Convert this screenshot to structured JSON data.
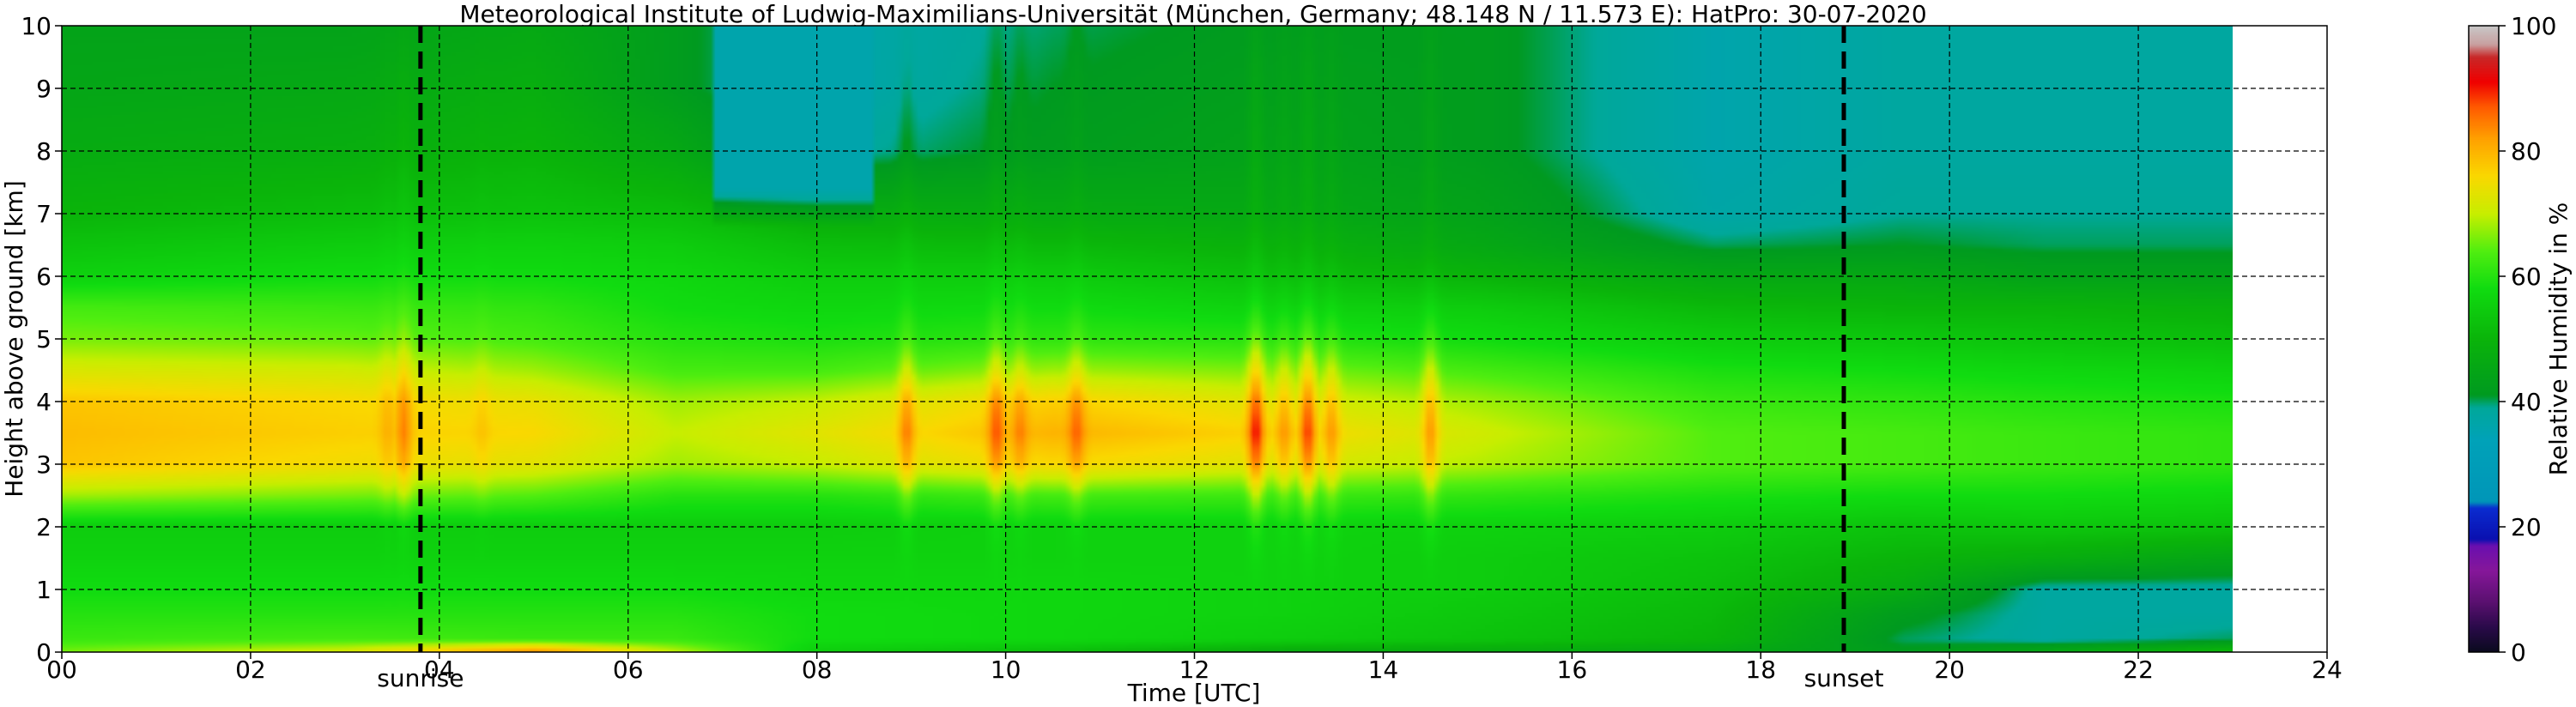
{
  "chart_data": {
    "type": "heatmap",
    "title": "Meteorological Institute of Ludwig-Maximilians-Universität (München, Germany; 48.148 N / 11.573 E):    HatPro: 30-07-2020",
    "xlabel": "Time [UTC]",
    "ylabel": "Height above ground [km]",
    "xlim": [
      0,
      24
    ],
    "ylim": [
      0,
      10
    ],
    "data_x_extent": [
      0,
      23
    ],
    "x_ticks": [
      "00",
      "02",
      "04",
      "06",
      "08",
      "10",
      "12",
      "14",
      "16",
      "18",
      "20",
      "22",
      "24"
    ],
    "y_ticks": [
      "0",
      "1",
      "2",
      "3",
      "4",
      "5",
      "6",
      "7",
      "8",
      "9",
      "10"
    ],
    "grid": true,
    "colorbar": {
      "label": "Relative Humidity in %",
      "range": [
        0,
        100
      ],
      "ticks": [
        "0",
        "20",
        "40",
        "60",
        "80",
        "100"
      ],
      "stops": [
        {
          "v": 0,
          "color": "#0a0a1e"
        },
        {
          "v": 4,
          "color": "#2a0a4a"
        },
        {
          "v": 8,
          "color": "#5a1070"
        },
        {
          "v": 13,
          "color": "#86179a"
        },
        {
          "v": 17,
          "color": "#6a0fb0"
        },
        {
          "v": 18,
          "color": "#0a10b0"
        },
        {
          "v": 23,
          "color": "#0a2cd0"
        },
        {
          "v": 24,
          "color": "#0096b8"
        },
        {
          "v": 34,
          "color": "#00a2b8"
        },
        {
          "v": 39,
          "color": "#00a89a"
        },
        {
          "v": 41,
          "color": "#009a20"
        },
        {
          "v": 50,
          "color": "#0ab40a"
        },
        {
          "v": 58,
          "color": "#10dc10"
        },
        {
          "v": 64,
          "color": "#50ee10"
        },
        {
          "v": 70,
          "color": "#c8ee00"
        },
        {
          "v": 76,
          "color": "#fad800"
        },
        {
          "v": 82,
          "color": "#ffa000"
        },
        {
          "v": 87,
          "color": "#ff5a00"
        },
        {
          "v": 91,
          "color": "#f00000"
        },
        {
          "v": 95,
          "color": "#c82828"
        },
        {
          "v": 97,
          "color": "#c8a0a0"
        },
        {
          "v": 100,
          "color": "#c8c8c8"
        }
      ]
    },
    "annotations": [
      {
        "label": "sunrise",
        "x": 3.8
      },
      {
        "label": "sunset",
        "x": 18.88
      }
    ],
    "humidity_profile_at_hours": {
      "heights_km": [
        0,
        0.2,
        0.6,
        1.0,
        1.5,
        2.0,
        2.5,
        3.0,
        3.5,
        4.0,
        4.5,
        5.0,
        5.5,
        6.0,
        6.5,
        7.0,
        8.0,
        9.0,
        10.0
      ],
      "columns": [
        {
          "t": 0,
          "rh": [
            66,
            62,
            60,
            58,
            56,
            55,
            68,
            78,
            79,
            78,
            72,
            66,
            63,
            56,
            53,
            50,
            47,
            45,
            44
          ]
        },
        {
          "t": 3,
          "rh": [
            72,
            63,
            60,
            58,
            56,
            55,
            66,
            75,
            77,
            76,
            71,
            65,
            62,
            58,
            55,
            52,
            48,
            46,
            44
          ]
        },
        {
          "t": 5,
          "rh": [
            85,
            62,
            60,
            58,
            56,
            55,
            64,
            73,
            76,
            74,
            68,
            63,
            61,
            58,
            56,
            53,
            50,
            48,
            46
          ]
        },
        {
          "t": 6.5,
          "rh": [
            70,
            62,
            60,
            58,
            56,
            55,
            60,
            68,
            70,
            68,
            63,
            60,
            58,
            57,
            55,
            52,
            46,
            42,
            42
          ]
        },
        {
          "t": 8,
          "rh": [
            55,
            58,
            58,
            57,
            56,
            55,
            60,
            70,
            73,
            70,
            63,
            59,
            57,
            55,
            52,
            48,
            38,
            36,
            36
          ]
        },
        {
          "t": 10.5,
          "rh": [
            52,
            57,
            57,
            57,
            56,
            56,
            63,
            76,
            80,
            77,
            68,
            61,
            58,
            55,
            51,
            47,
            42,
            41,
            40
          ]
        },
        {
          "t": 13,
          "rh": [
            47,
            55,
            56,
            56,
            56,
            56,
            62,
            72,
            76,
            72,
            66,
            60,
            56,
            52,
            49,
            46,
            44,
            43,
            42
          ]
        },
        {
          "t": 15,
          "rh": [
            47,
            53,
            54,
            55,
            55,
            56,
            61,
            69,
            71,
            68,
            63,
            58,
            55,
            50,
            46,
            44,
            42,
            42,
            42
          ]
        },
        {
          "t": 17.5,
          "rh": [
            46,
            50,
            51,
            52,
            53,
            55,
            59,
            64,
            64,
            62,
            59,
            55,
            51,
            46,
            40,
            37,
            36,
            36,
            36
          ]
        },
        {
          "t": 19.5,
          "rh": [
            42,
            40,
            42,
            47,
            50,
            53,
            58,
            63,
            63,
            61,
            58,
            54,
            50,
            46,
            41,
            39,
            38,
            38,
            38
          ]
        },
        {
          "t": 21,
          "rh": [
            46,
            38,
            38,
            38,
            48,
            54,
            58,
            62,
            62,
            60,
            57,
            53,
            50,
            44,
            40,
            39,
            38,
            38,
            38
          ]
        },
        {
          "t": 23,
          "rh": [
            52,
            40,
            38,
            38,
            45,
            53,
            57,
            61,
            61,
            59,
            56,
            52,
            49,
            44,
            40,
            39,
            38,
            38,
            38
          ]
        }
      ]
    },
    "moist_streaks": [
      {
        "t": 3.45,
        "rh_peak": 80
      },
      {
        "t": 3.62,
        "rh_peak": 84
      },
      {
        "t": 4.45,
        "rh_peak": 78
      },
      {
        "t": 8.95,
        "rh_peak": 84
      },
      {
        "t": 9.45,
        "rh_peak": 76
      },
      {
        "t": 9.9,
        "rh_peak": 87
      },
      {
        "t": 10.15,
        "rh_peak": 84
      },
      {
        "t": 10.75,
        "rh_peak": 86
      },
      {
        "t": 12.65,
        "rh_peak": 90
      },
      {
        "t": 12.95,
        "rh_peak": 82
      },
      {
        "t": 13.2,
        "rh_peak": 88
      },
      {
        "t": 13.45,
        "rh_peak": 82
      },
      {
        "t": 14.5,
        "rh_peak": 82
      }
    ],
    "dry_upper_period": {
      "t_start": 6.9,
      "t_end": 8.6,
      "rh": 36
    }
  }
}
